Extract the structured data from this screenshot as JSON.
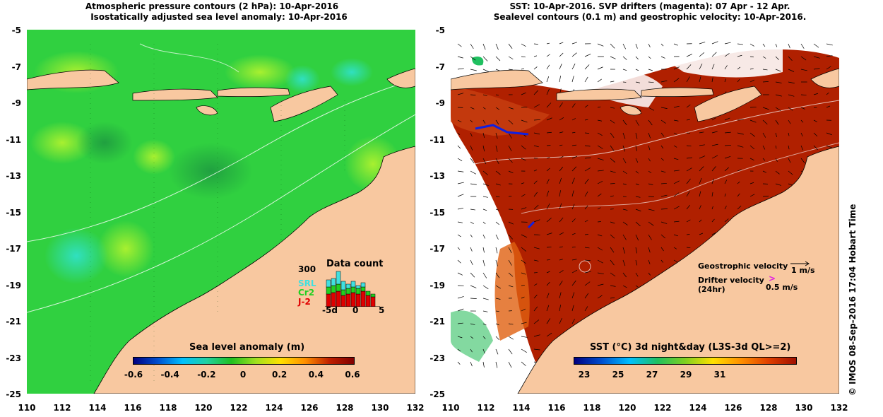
{
  "left_panel": {
    "title_line1": "Atmospheric pressure contours (2 hPa): 10-Apr-2016",
    "title_line2": "Isostatically adjusted sea level anomaly: 10-Apr-2016",
    "colorbar_title": "Sea level anomaly (m)",
    "colorbar_ticks": [
      "-0.6",
      "-0.4",
      "-0.2",
      "0",
      "0.2",
      "0.4",
      "0.6"
    ],
    "colorbar_colors": [
      "#000080",
      "#0050d0",
      "#00c0ff",
      "#20d0a0",
      "#20c020",
      "#a0e020",
      "#ffe000",
      "#ff9000",
      "#c02000",
      "#800000"
    ],
    "data_count": {
      "title": "Data count",
      "y_max_label": "300",
      "x_labels": [
        "-5d",
        "0",
        "5"
      ],
      "legend": [
        {
          "name": "SRL",
          "color": "#40e0e0"
        },
        {
          "name": "Cr2",
          "color": "#20d020"
        },
        {
          "name": "J-2",
          "color": "#e00000"
        }
      ]
    }
  },
  "right_panel": {
    "title_line1": "SST: 10-Apr-2016. SVP drifters (magenta): 07 Apr - 12 Apr.",
    "title_line2": "Sealevel contours (0.1 m) and geostrophic velocity: 10-Apr-2016.",
    "colorbar_title": "SST (°C) 3d night&day (L3S-3d QL>=2)",
    "colorbar_ticks": [
      "23",
      "25",
      "27",
      "29",
      "31"
    ],
    "colorbar_colors": [
      "#000080",
      "#0050d0",
      "#00c0ff",
      "#20c060",
      "#80d020",
      "#ffe000",
      "#ff9000",
      "#e04000",
      "#a01000"
    ],
    "velocity_legend": {
      "geostrophic_label": "Geostrophic velocity",
      "geostrophic_scale": "1 m/s",
      "drifter_label_1": "Drifter velocity",
      "drifter_label_2": "(24hr)",
      "drifter_scale": "0.5 m/s"
    }
  },
  "axes": {
    "y_ticks": [
      "-5",
      "-7",
      "-9",
      "-11",
      "-13",
      "-15",
      "-17",
      "-19",
      "-21",
      "-23",
      "-25"
    ],
    "x_ticks": [
      "110",
      "112",
      "114",
      "116",
      "118",
      "120",
      "122",
      "124",
      "126",
      "128",
      "130",
      "132"
    ]
  },
  "copyright": "© IMOS 08-Sep-2016 17:04 Hobart Time",
  "colors": {
    "land": "#f8c8a0",
    "ocean_green": "#30d040",
    "sst_red": "#b02000",
    "no_data": "#ffffff"
  }
}
